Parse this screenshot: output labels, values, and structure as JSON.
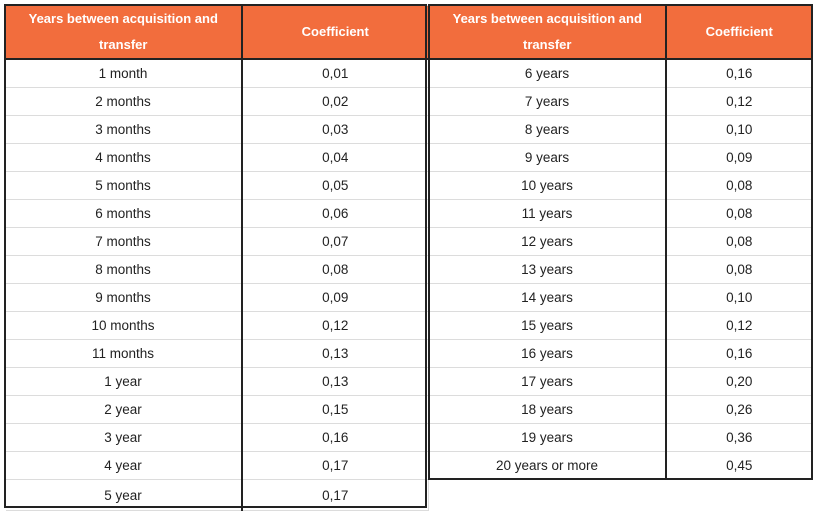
{
  "left": {
    "header": {
      "period": "Years between acquisition and transfer",
      "coefficient": "Coefficient"
    },
    "rows": [
      {
        "period": "1 month",
        "coefficient": "0,01"
      },
      {
        "period": "2 months",
        "coefficient": "0,02"
      },
      {
        "period": "3 months",
        "coefficient": "0,03"
      },
      {
        "period": "4 months",
        "coefficient": "0,04"
      },
      {
        "period": "5 months",
        "coefficient": "0,05"
      },
      {
        "period": "6 months",
        "coefficient": "0,06"
      },
      {
        "period": "7 months",
        "coefficient": "0,07"
      },
      {
        "period": "8 months",
        "coefficient": "0,08"
      },
      {
        "period": "9 months",
        "coefficient": "0,09"
      },
      {
        "period": "10 months",
        "coefficient": "0,12"
      },
      {
        "period": "11 months",
        "coefficient": "0,13"
      },
      {
        "period": "1 year",
        "coefficient": "0,13"
      },
      {
        "period": "2 year",
        "coefficient": "0,15"
      },
      {
        "period": "3 year",
        "coefficient": "0,16"
      },
      {
        "period": "4 year",
        "coefficient": "0,17"
      },
      {
        "period": "5 year",
        "coefficient": "0,17"
      }
    ]
  },
  "right": {
    "header": {
      "period": "Years between acquisition and transfer",
      "coefficient": "Coefficient"
    },
    "rows": [
      {
        "period": "6 years",
        "coefficient": "0,16"
      },
      {
        "period": "7 years",
        "coefficient": "0,12"
      },
      {
        "period": "8 years",
        "coefficient": "0,10"
      },
      {
        "period": "9 years",
        "coefficient": "0,09"
      },
      {
        "period": "10 years",
        "coefficient": "0,08"
      },
      {
        "period": "11 years",
        "coefficient": "0,08"
      },
      {
        "period": "12 years",
        "coefficient": "0,08"
      },
      {
        "period": "13 years",
        "coefficient": "0,08"
      },
      {
        "period": "14 years",
        "coefficient": "0,10"
      },
      {
        "period": "15 years",
        "coefficient": "0,12"
      },
      {
        "period": "16 years",
        "coefficient": "0,16"
      },
      {
        "period": "17 years",
        "coefficient": "0,20"
      },
      {
        "period": "18 years",
        "coefficient": "0,26"
      },
      {
        "period": "19 years",
        "coefficient": "0,36"
      },
      {
        "period": "20 years or more",
        "coefficient": "0,45"
      }
    ]
  },
  "colors": {
    "header_bg": "#f26d3d",
    "header_text": "#ffffff"
  }
}
